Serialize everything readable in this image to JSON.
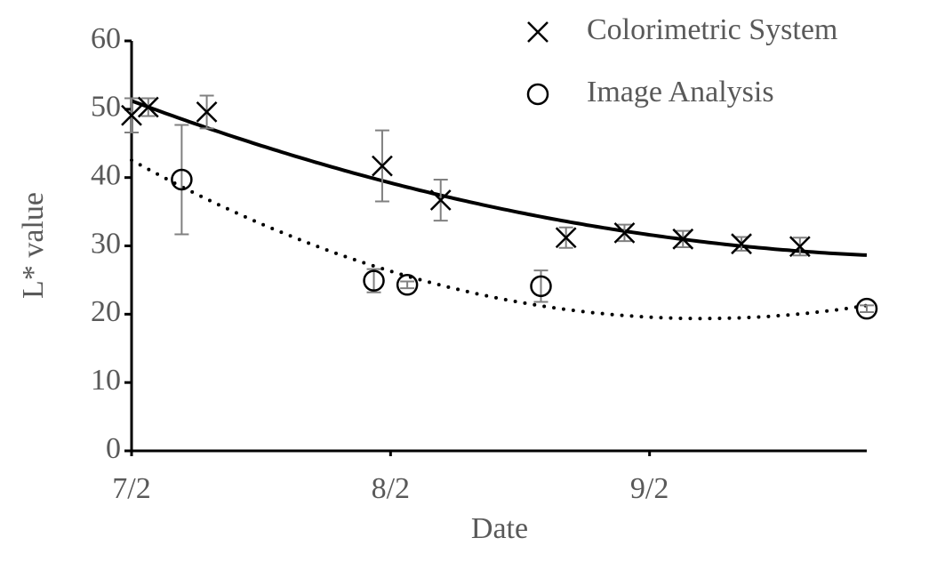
{
  "chart_data": {
    "type": "scatter",
    "x_label": "Date",
    "y_label": "L*  value",
    "xlim": [
      "7/2",
      "9/28"
    ],
    "xticks": [
      "7/2",
      "8/2",
      "9/2"
    ],
    "ylim": [
      0,
      60
    ],
    "yticks": [
      0,
      10,
      20,
      30,
      40,
      50,
      60
    ],
    "legend": "top-right",
    "series": [
      {
        "name": "Colorimetric System",
        "color": "#000000",
        "marker": "x",
        "trendline": "polynomial",
        "trend_style": "solid",
        "x": [
          "7/2",
          "7/4",
          "7/11",
          "8/1",
          "8/8",
          "8/23",
          "8/30",
          "9/6",
          "9/13",
          "9/20"
        ],
        "values": [
          49.1,
          50.3,
          49.6,
          41.7,
          36.7,
          31.2,
          31.9,
          31.0,
          30.3,
          29.9
        ],
        "errors": [
          2.5,
          1.3,
          2.4,
          5.2,
          3.0,
          1.5,
          1.2,
          1.2,
          1.0,
          1.3
        ]
      },
      {
        "name": "Image Analysis",
        "color": "#000000",
        "marker": "o",
        "trendline": "polynomial",
        "trend_style": "dotted",
        "x": [
          "7/8",
          "7/31",
          "8/4",
          "8/20",
          "9/28"
        ],
        "values": [
          39.7,
          24.9,
          24.3,
          24.1,
          20.8
        ],
        "errors": [
          8.0,
          1.7,
          0.5,
          2.3,
          0.5
        ]
      }
    ]
  }
}
